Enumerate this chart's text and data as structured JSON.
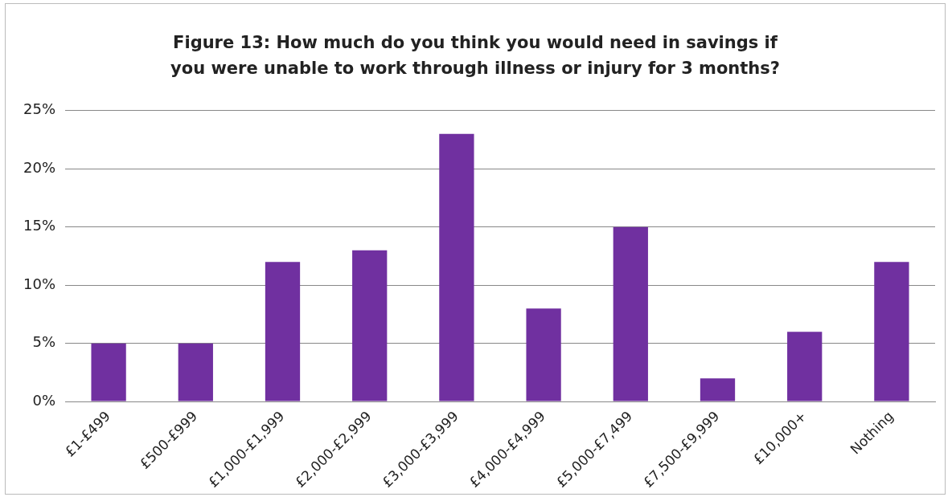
{
  "chart_data": {
    "type": "bar",
    "title": "Figure 13: How much do you think you would need in savings if you were unable to work through illness or injury for 3 months?",
    "categories": [
      "£1-£499",
      "£500-£999",
      "£1,000-£1,999",
      "£2,000-£2,999",
      "£3,000-£3,999",
      "£4,000-£4,999",
      "£5,000-£7,499",
      "£7,500-£9,999",
      "£10,000+",
      "Nothing"
    ],
    "values": [
      5,
      5,
      12,
      13,
      23,
      8,
      15,
      2,
      6,
      12
    ],
    "color": "#7030a0",
    "ylim": [
      0,
      25
    ],
    "yticks": [
      {
        "value": 0,
        "label": "0%"
      },
      {
        "value": 5,
        "label": "5%"
      },
      {
        "value": 10,
        "label": "10%"
      },
      {
        "value": 15,
        "label": "15%"
      },
      {
        "value": 20,
        "label": "20%"
      },
      {
        "value": 25,
        "label": "25%"
      }
    ],
    "grid": "y",
    "legend": false
  }
}
